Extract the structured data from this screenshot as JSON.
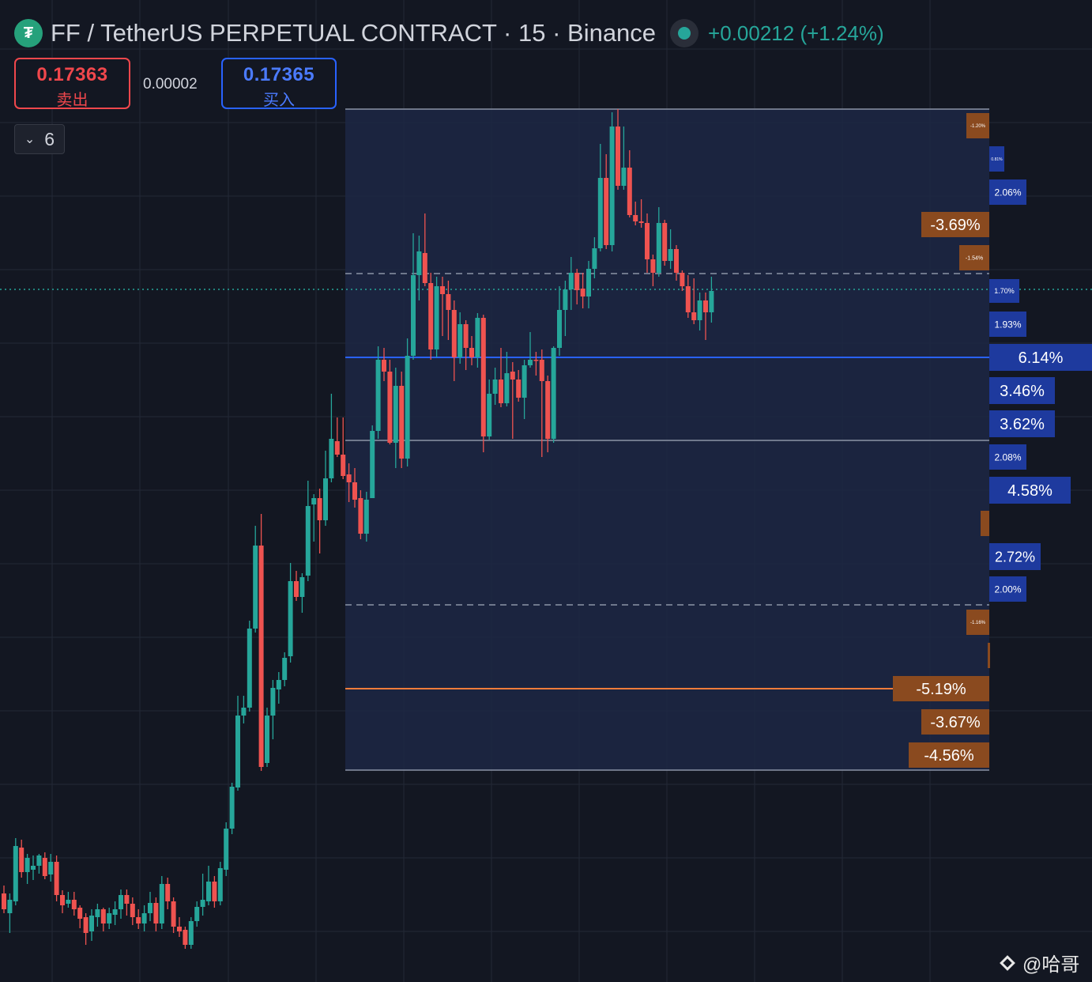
{
  "header": {
    "title": "FF / TetherUS PERPETUAL CONTRACT · 15 · Binance",
    "change": "+0.00212 (+1.24%)",
    "logo_glyph": "₮"
  },
  "trade": {
    "sell_price": "0.17363",
    "sell_label": "卖出",
    "spread": "0.00002",
    "buy_price": "0.17365",
    "buy_label": "买入"
  },
  "indicators": {
    "collapse_label": "6"
  },
  "watermark": {
    "text": "@哈哥"
  },
  "colors": {
    "background": "#131722",
    "up": "#26a69a",
    "down": "#ef5350",
    "zone": "#1d2744",
    "blue_label": "#1e3a9e",
    "brown_label": "#8a4a1f",
    "blue_line": "#2962ff",
    "orange_line": "#f57c3a",
    "last_price_line": "#26a69a"
  },
  "chart_data": {
    "type": "candlestick",
    "symbol": "FF / TetherUS PERPETUAL CONTRACT",
    "interval": "15",
    "exchange": "Binance",
    "grid": true,
    "candles": [
      [
        1130,
        1150,
        1120,
        1155
      ],
      [
        1155,
        1138,
        1130,
        1180
      ],
      [
        1140,
        1070,
        1060,
        1145
      ],
      [
        1072,
        1103,
        1062,
        1110
      ],
      [
        1103,
        1085,
        1080,
        1118
      ],
      [
        1100,
        1095,
        1082,
        1113
      ],
      [
        1095,
        1082,
        1080,
        1105
      ],
      [
        1085,
        1108,
        1078,
        1112
      ],
      [
        1106,
        1090,
        1080,
        1115
      ],
      [
        1090,
        1132,
        1082,
        1140
      ],
      [
        1132,
        1145,
        1126,
        1155
      ],
      [
        1143,
        1138,
        1128,
        1148
      ],
      [
        1138,
        1150,
        1128,
        1158
      ],
      [
        1148,
        1162,
        1145,
        1174
      ],
      [
        1160,
        1180,
        1155,
        1195
      ],
      [
        1178,
        1158,
        1150,
        1190
      ],
      [
        1160,
        1150,
        1143,
        1172
      ],
      [
        1150,
        1168,
        1148,
        1178
      ],
      [
        1168,
        1155,
        1148,
        1175
      ],
      [
        1157,
        1150,
        1140,
        1170
      ],
      [
        1150,
        1132,
        1125,
        1162
      ],
      [
        1132,
        1143,
        1125,
        1158
      ],
      [
        1143,
        1160,
        1135,
        1170
      ],
      [
        1160,
        1168,
        1150,
        1175
      ],
      [
        1168,
        1155,
        1145,
        1178
      ],
      [
        1155,
        1142,
        1128,
        1165
      ],
      [
        1142,
        1168,
        1135,
        1178
      ],
      [
        1168,
        1118,
        1108,
        1175
      ],
      [
        1118,
        1140,
        1110,
        1150
      ],
      [
        1140,
        1172,
        1135,
        1180
      ],
      [
        1172,
        1178,
        1160,
        1185
      ],
      [
        1176,
        1195,
        1172,
        1200
      ],
      [
        1195,
        1165,
        1160,
        1200
      ],
      [
        1165,
        1147,
        1140,
        1172
      ],
      [
        1147,
        1138,
        1105,
        1158
      ],
      [
        1140,
        1115,
        1095,
        1145
      ],
      [
        1115,
        1140,
        1108,
        1148
      ],
      [
        1140,
        1098,
        1090,
        1145
      ],
      [
        1100,
        1048,
        1040,
        1108
      ],
      [
        1048,
        995,
        990,
        1055
      ],
      [
        996,
        905,
        880,
        1000
      ],
      [
        905,
        895,
        880,
        915
      ],
      [
        895,
        795,
        785,
        900
      ],
      [
        795,
        690,
        665,
        800
      ],
      [
        690,
        970,
        650,
        975
      ],
      [
        965,
        905,
        895,
        970
      ],
      [
        905,
        870,
        860,
        935
      ],
      [
        872,
        860,
        850,
        890
      ],
      [
        860,
        832,
        825,
        868
      ],
      [
        830,
        735,
        712,
        838
      ],
      [
        735,
        755,
        722,
        760
      ],
      [
        755,
        730,
        725,
        775
      ],
      [
        728,
        640,
        608,
        735
      ],
      [
        638,
        630,
        625,
        685
      ],
      [
        630,
        658,
        618,
        700
      ],
      [
        658,
        605,
        570,
        665
      ],
      [
        605,
        555,
        498,
        610
      ],
      [
        558,
        575,
        528,
        578
      ],
      [
        575,
        602,
        528,
        606
      ],
      [
        600,
        610,
        586,
        635
      ],
      [
        610,
        632,
        592,
        642
      ],
      [
        630,
        675,
        620,
        682
      ],
      [
        675,
        632,
        622,
        685
      ],
      [
        630,
        545,
        538,
        630
      ],
      [
        545,
        455,
        438,
        555
      ],
      [
        455,
        470,
        440,
        482
      ],
      [
        470,
        560,
        455,
        562
      ],
      [
        560,
        488,
        465,
        592
      ],
      [
        488,
        580,
        470,
        592
      ],
      [
        580,
        450,
        428,
        590
      ],
      [
        450,
        348,
        295,
        455
      ],
      [
        348,
        318,
        298,
        380
      ],
      [
        320,
        358,
        270,
        362
      ],
      [
        358,
        442,
        345,
        455
      ],
      [
        442,
        362,
        350,
        452
      ],
      [
        362,
        372,
        350,
        425
      ],
      [
        372,
        392,
        355,
        430
      ],
      [
        392,
        452,
        380,
        482
      ],
      [
        452,
        410,
        395,
        460
      ],
      [
        410,
        440,
        405,
        468
      ],
      [
        440,
        452,
        425,
        462
      ],
      [
        452,
        402,
        396,
        465
      ],
      [
        402,
        552,
        398,
        572
      ],
      [
        552,
        498,
        480,
        556
      ],
      [
        498,
        480,
        465,
        512
      ],
      [
        480,
        510,
        440,
        515
      ],
      [
        510,
        472,
        445,
        514
      ],
      [
        470,
        480,
        458,
        555
      ],
      [
        480,
        503,
        468,
        508
      ],
      [
        503,
        462,
        455,
        530
      ],
      [
        462,
        455,
        420,
        465
      ],
      [
        455,
        455,
        445,
        475
      ],
      [
        455,
        482,
        442,
        578
      ],
      [
        482,
        555,
        475,
        572
      ],
      [
        555,
        440,
        438,
        560
      ],
      [
        440,
        392,
        362,
        450
      ],
      [
        392,
        366,
        355,
        425
      ],
      [
        366,
        345,
        325,
        392
      ],
      [
        345,
        367,
        340,
        385
      ],
      [
        365,
        375,
        345,
        390
      ],
      [
        375,
        340,
        330,
        390
      ],
      [
        340,
        314,
        300,
        352
      ],
      [
        314,
        225,
        182,
        318
      ],
      [
        225,
        310,
        195,
        315
      ],
      [
        310,
        160,
        142,
        318
      ],
      [
        160,
        235,
        138,
        240
      ],
      [
        235,
        212,
        160,
        240
      ],
      [
        212,
        272,
        190,
        275
      ],
      [
        272,
        280,
        255,
        285
      ],
      [
        280,
        282,
        252,
        288
      ],
      [
        282,
        328,
        270,
        345
      ],
      [
        328,
        345,
        322,
        362
      ],
      [
        345,
        282,
        262,
        350
      ],
      [
        282,
        330,
        278,
        336
      ],
      [
        330,
        315,
        290,
        340
      ],
      [
        315,
        345,
        310,
        355
      ],
      [
        345,
        362,
        342,
        368
      ],
      [
        362,
        395,
        348,
        402
      ],
      [
        395,
        405,
        352,
        410
      ],
      [
        405,
        380,
        370,
        418
      ],
      [
        380,
        395,
        370,
        430
      ],
      [
        395,
        368,
        350,
        408
      ]
    ],
    "x_labels": [],
    "y_labels": [],
    "zone": {
      "top_line": "upper boundary",
      "bottom_line": "lower boundary",
      "mid_lines": [
        "dashed",
        "solid",
        "dashed"
      ]
    },
    "levels": [
      {
        "label": "-1.20%",
        "side": "sell"
      },
      {
        "label": "0.81%",
        "side": "buy"
      },
      {
        "label": "2.06%",
        "side": "buy"
      },
      {
        "label": "-3.69%",
        "side": "sell"
      },
      {
        "label": "-1.54%",
        "side": "sell"
      },
      {
        "label": "1.70%",
        "side": "buy"
      },
      {
        "label": "1.93%",
        "side": "buy"
      },
      {
        "label": "6.14%",
        "side": "buy"
      },
      {
        "label": "3.46%",
        "side": "buy"
      },
      {
        "label": "3.62%",
        "side": "buy"
      },
      {
        "label": "2.08%",
        "side": "buy"
      },
      {
        "label": "4.58%",
        "side": "buy"
      },
      {
        "label": "",
        "side": "sell"
      },
      {
        "label": "2.72%",
        "side": "buy"
      },
      {
        "label": "2.00%",
        "side": "buy"
      },
      {
        "label": "-1.16%",
        "side": "sell"
      },
      {
        "label": "",
        "side": "sell"
      },
      {
        "label": "-5.19%",
        "side": "sell"
      },
      {
        "label": "-3.67%",
        "side": "sell"
      },
      {
        "label": "-4.56%",
        "side": "sell"
      }
    ]
  }
}
